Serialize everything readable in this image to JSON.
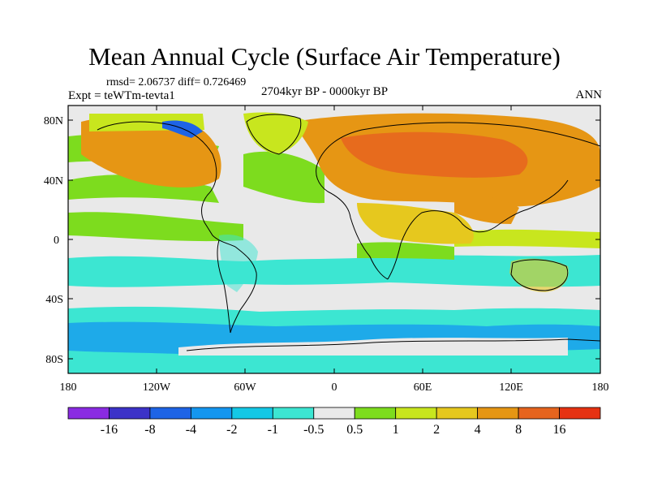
{
  "header": {
    "title": "Mean Annual Cycle (Surface Air Temperature)",
    "stats": "rmsd= 2.06737 diff= 0.726469",
    "experiment": "Expt = teWTm-tevta1",
    "period": "2704kyr BP - 0000kyr BP",
    "season": "ANN"
  },
  "axes": {
    "lat_labels": [
      "80N",
      "40N",
      "0",
      "40S",
      "80S"
    ],
    "lon_labels": [
      "180",
      "120W",
      "60W",
      "0",
      "60E",
      "120E",
      "180"
    ]
  },
  "colorbar": {
    "colors": [
      "#8a2be2",
      "#3c32c8",
      "#1e64e6",
      "#1496f0",
      "#14c8e6",
      "#3ce6d2",
      "#e9e9e9",
      "#7ddc1e",
      "#c8e61e",
      "#e6c81e",
      "#e69614",
      "#e6641e",
      "#e63212"
    ],
    "labels": [
      "-16",
      "-8",
      "-4",
      "-2",
      "-1",
      "-0.5",
      "0.5",
      "1",
      "2",
      "4",
      "8",
      "16"
    ]
  },
  "colors": {
    "background": "#e9e9e9",
    "coast": "#000000"
  }
}
